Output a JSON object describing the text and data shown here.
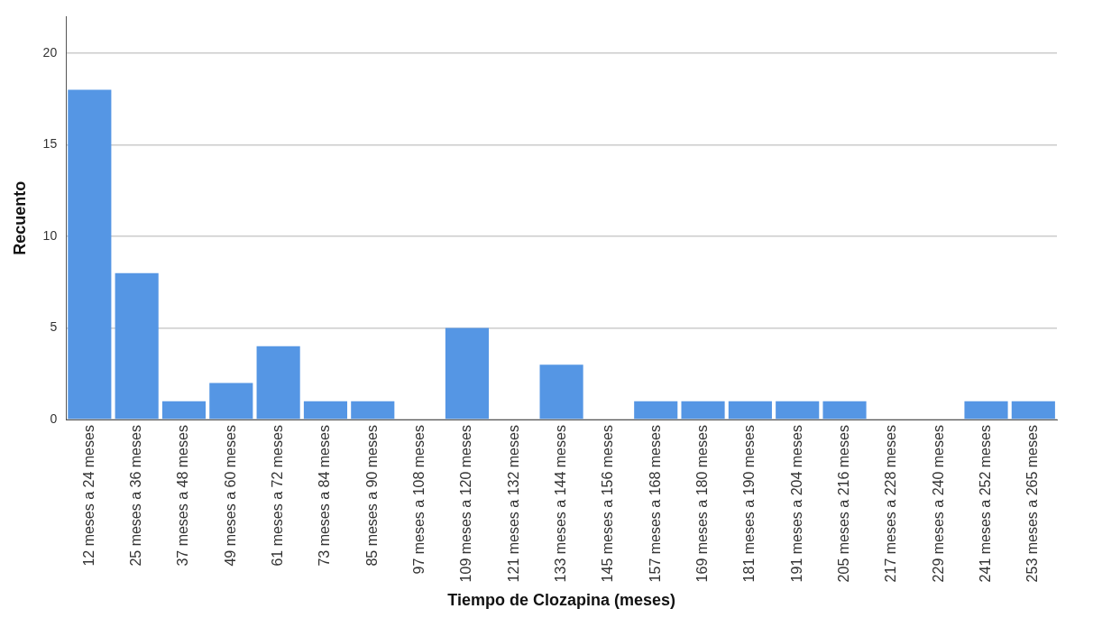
{
  "chart_data": {
    "type": "bar",
    "xlabel": "Tiempo de Clozapina (meses)",
    "ylabel": "Recuento",
    "categories": [
      "12 meses a 24 meses",
      "25 meses a 36 meses",
      "37 meses a 48 meses",
      "49 meses a 60 meses",
      "61 meses a 72 meses",
      "73 meses a 84 meses",
      "85 meses a 90 meses",
      "97 meses a 108 meses",
      "109 meses a 120 meses",
      "121 meses a 132 meses",
      "133 meses a 144 meses",
      "145 meses a 156 meses",
      "157 meses a 168 meses",
      "169 meses a 180 meses",
      "181 meses a 190 meses",
      "191 meses a 204 meses",
      "205 meses a 216 meses",
      "217 meses a 228 meses",
      "229 meses a 240 meses",
      "241 meses a 252 meses",
      "253 meses a 265 meses"
    ],
    "values": [
      18,
      8,
      1,
      2,
      4,
      1,
      1,
      0,
      5,
      0,
      3,
      0,
      1,
      1,
      1,
      1,
      1,
      0,
      0,
      1,
      1
    ],
    "color": "#5596e4",
    "ylim": [
      0,
      22
    ],
    "yticks": [
      0,
      5,
      10,
      15,
      20
    ],
    "grid": "y",
    "legend": false
  }
}
